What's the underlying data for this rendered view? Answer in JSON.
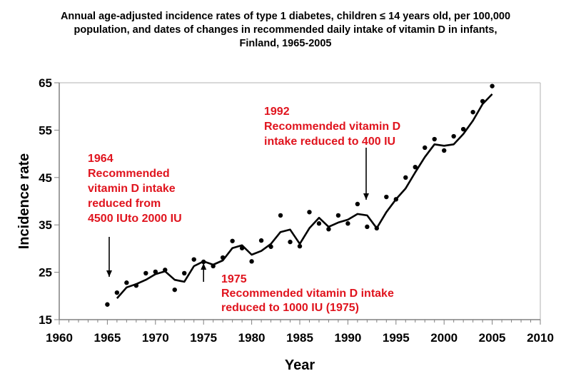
{
  "chart_data": {
    "type": "line",
    "title": "Annual age-adjusted incidence rates of type 1 diabetes, children ≤ 14 years old, per 100,000 population, and dates of changes in recommended daily intake of vitamin D in infants, Finland, 1965-2005",
    "xlabel": "Year",
    "ylabel": "Incidence rate",
    "xlim": [
      1960,
      2010
    ],
    "ylim": [
      15,
      65
    ],
    "xticks": [
      1960,
      1965,
      1970,
      1975,
      1980,
      1985,
      1990,
      1995,
      2000,
      2005,
      2010
    ],
    "yticks": [
      15,
      25,
      35,
      45,
      55,
      65
    ],
    "grid": false,
    "legend": "none",
    "series": [
      {
        "name": "Annual incidence (points)",
        "kind": "scatter",
        "x": [
          1965,
          1966,
          1967,
          1968,
          1969,
          1970,
          1971,
          1972,
          1973,
          1974,
          1975,
          1976,
          1977,
          1978,
          1979,
          1980,
          1981,
          1982,
          1983,
          1984,
          1985,
          1986,
          1987,
          1988,
          1989,
          1990,
          1991,
          1992,
          1993,
          1994,
          1995,
          1996,
          1997,
          1998,
          1999,
          2000,
          2001,
          2002,
          2003,
          2004,
          2005
        ],
        "values": [
          18.2,
          20.7,
          22.8,
          22.2,
          24.8,
          25.1,
          25.5,
          21.3,
          24.8,
          27.7,
          27.2,
          26.3,
          28.1,
          31.6,
          30.1,
          27.3,
          31.7,
          30.4,
          37.0,
          31.4,
          30.5,
          37.7,
          35.3,
          34.1,
          37.0,
          35.3,
          39.4,
          34.6,
          34.3,
          40.9,
          40.4,
          45.0,
          47.2,
          51.3,
          53.1,
          50.7,
          53.7,
          55.2,
          58.8,
          61.1,
          64.3
        ]
      },
      {
        "name": "Smoothed trend (line)",
        "kind": "line",
        "x": [
          1966,
          1967,
          1968,
          1969,
          1970,
          1971,
          1972,
          1973,
          1974,
          1975,
          1976,
          1977,
          1978,
          1979,
          1980,
          1981,
          1982,
          1983,
          1984,
          1985,
          1986,
          1987,
          1988,
          1989,
          1990,
          1991,
          1992,
          1993,
          1994,
          1995,
          1996,
          1997,
          1998,
          1999,
          2000,
          2001,
          2002,
          2003,
          2004,
          2005
        ],
        "values": [
          19.5,
          21.8,
          22.5,
          23.4,
          24.6,
          25.2,
          23.4,
          23.0,
          26.3,
          27.3,
          26.6,
          27.5,
          30.1,
          30.7,
          28.7,
          29.5,
          31.0,
          33.5,
          34.0,
          31.0,
          34.3,
          36.5,
          34.6,
          35.5,
          36.1,
          37.3,
          37.0,
          34.3,
          37.7,
          40.4,
          42.7,
          46.1,
          49.3,
          52.0,
          51.7,
          52.0,
          54.2,
          57.0,
          60.5,
          62.6
        ]
      }
    ],
    "annotations": [
      {
        "lines": [
          "1964",
          "Recommended",
          "vitamin D intake",
          "reduced from",
          "4500 IUto 2000 IU"
        ],
        "arrow_year": 1965,
        "arrow_direction": "down"
      },
      {
        "lines": [
          "1975",
          "Recommended vitamin D intake",
          "reduced to 1000 IU (1975)"
        ],
        "arrow_year": 1975,
        "arrow_direction": "up"
      },
      {
        "lines": [
          "1992",
          "Recommended vitamin D",
          "intake reduced to 400 IU"
        ],
        "arrow_year": 1992,
        "arrow_direction": "down"
      }
    ],
    "colors": {
      "data": "#000000",
      "annotation": "#e0141e",
      "frame": "#808080"
    }
  }
}
